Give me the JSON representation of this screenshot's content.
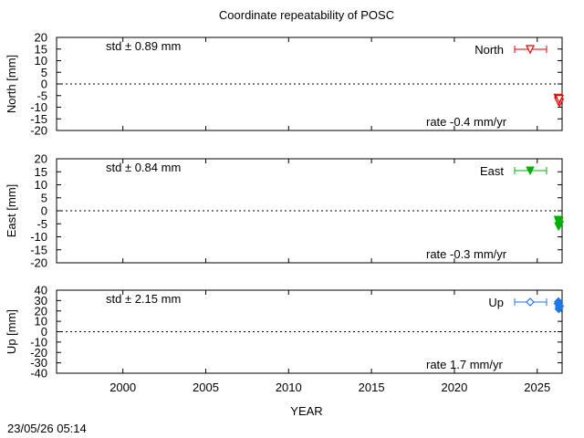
{
  "title": "Coordinate repeatability of POSC",
  "timestamp": "23/05/26 05:14",
  "xlabel": "YEAR",
  "x_ticks": [
    "2000",
    "2005",
    "2010",
    "2015",
    "2020",
    "2025"
  ],
  "chart_data": [
    {
      "type": "scatter",
      "series_name": "North",
      "ylabel": "North [mm]",
      "ylim": [
        -20,
        20
      ],
      "xlim": [
        1996,
        2026.5
      ],
      "y_ticks": [
        "20",
        "15",
        "10",
        "5",
        "0",
        "-5",
        "-10",
        "-15",
        "-20"
      ],
      "std_text": "std ± 0.89 mm",
      "rate_text": "rate -0.4 mm/yr",
      "color": "#e00000",
      "marker": "triangle-down-open",
      "points": [
        {
          "x": 2026.25,
          "y": -6
        },
        {
          "x": 2026.3,
          "y": -7
        },
        {
          "x": 2026.35,
          "y": -8
        },
        {
          "x": 2026.28,
          "y": -7.5
        },
        {
          "x": 2026.33,
          "y": -6.5
        }
      ]
    },
    {
      "type": "scatter",
      "series_name": "East",
      "ylabel": "East [mm]",
      "ylim": [
        -20,
        20
      ],
      "xlim": [
        1996,
        2026.5
      ],
      "y_ticks": [
        "20",
        "15",
        "10",
        "5",
        "0",
        "-5",
        "-10",
        "-15",
        "-20"
      ],
      "std_text": "std ± 0.84 mm",
      "rate_text": "rate -0.3 mm/yr",
      "color": "#00b000",
      "marker": "triangle-down-filled",
      "points": [
        {
          "x": 2026.25,
          "y": -3.5
        },
        {
          "x": 2026.3,
          "y": -4.5
        },
        {
          "x": 2026.35,
          "y": -5.5
        },
        {
          "x": 2026.28,
          "y": -6
        },
        {
          "x": 2026.33,
          "y": -4
        }
      ]
    },
    {
      "type": "scatter",
      "series_name": "Up",
      "ylabel": "Up [mm]",
      "ylim": [
        -40,
        40
      ],
      "xlim": [
        1996,
        2026.5
      ],
      "y_ticks": [
        "40",
        "30",
        "20",
        "10",
        "0",
        "-10",
        "-20",
        "-30",
        "-40"
      ],
      "std_text": "std ± 2.15 mm",
      "rate_text": "rate  1.7 mm/yr",
      "color": "#1e78e6",
      "marker": "diamond-open",
      "points": [
        {
          "x": 2026.25,
          "y": 27
        },
        {
          "x": 2026.3,
          "y": 22
        },
        {
          "x": 2026.35,
          "y": 25
        },
        {
          "x": 2026.28,
          "y": 29
        },
        {
          "x": 2026.33,
          "y": 24
        }
      ]
    }
  ]
}
